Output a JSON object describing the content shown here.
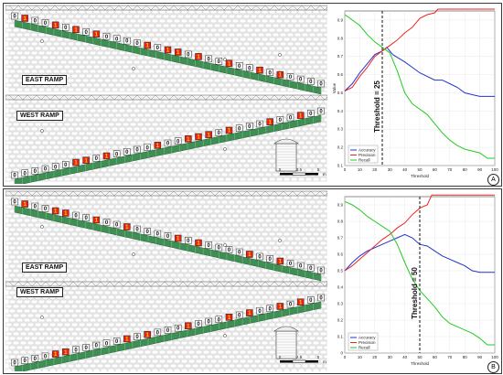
{
  "panels": [
    {
      "tag": "A",
      "ramps": [
        {
          "label": "EAST RAMP",
          "direction": "down",
          "labels": [
            "0",
            "1",
            "0",
            "0",
            "1",
            "0",
            "1",
            "0",
            "1",
            "0",
            "0",
            "0",
            "0",
            "1",
            "0",
            "1",
            "1",
            "0",
            "1",
            "0",
            "0",
            "1",
            "0",
            "0",
            "1",
            "0",
            "1",
            "0",
            "0",
            "0",
            "0"
          ]
        },
        {
          "label": "WEST RAMP",
          "direction": "up",
          "labels": [
            "0",
            "0",
            "0",
            "0",
            "0",
            "0",
            "1",
            "1",
            "0",
            "1",
            "0",
            "0",
            "0",
            "0",
            "1",
            "0",
            "0",
            "1",
            "1",
            "1",
            "0",
            "1",
            "0",
            "0",
            "0",
            "1",
            "0",
            "0",
            "1",
            "0",
            "0"
          ]
        }
      ],
      "scale": {
        "ticks": [
          "0",
          "2.5",
          "5"
        ],
        "unit": "m"
      },
      "chart_data": {
        "type": "line",
        "xlabel": "Threshold",
        "ylabel": "Value",
        "xlim": [
          0,
          100
        ],
        "ylim": [
          0.1,
          0.95
        ],
        "xticks": [
          "0",
          "10",
          "20",
          "30",
          "40",
          "50",
          "60",
          "70",
          "80",
          "90",
          "100"
        ],
        "yticks": [
          "0.1",
          "0.2",
          "0.3",
          "0.4",
          "0.5",
          "0.6",
          "0.7",
          "0.8",
          "0.9"
        ],
        "threshold": {
          "value": 25,
          "label": "Threshold = 25"
        },
        "legend_position": "bottom-left",
        "series": [
          {
            "name": "Accuracy",
            "color": "#2233cc",
            "x": [
              0,
              5,
              10,
              15,
              20,
              25,
              28,
              32,
              36,
              40,
              45,
              50,
              55,
              60,
              65,
              70,
              75,
              80,
              85,
              90,
              95,
              100
            ],
            "values": [
              0.51,
              0.55,
              0.61,
              0.66,
              0.71,
              0.73,
              0.75,
              0.71,
              0.69,
              0.67,
              0.64,
              0.61,
              0.59,
              0.57,
              0.57,
              0.55,
              0.53,
              0.5,
              0.49,
              0.48,
              0.48,
              0.48
            ]
          },
          {
            "name": "Precision",
            "color": "#ee2222",
            "x": [
              0,
              5,
              10,
              15,
              20,
              25,
              30,
              35,
              40,
              45,
              50,
              55,
              60,
              62,
              70,
              80,
              90,
              100
            ],
            "values": [
              0.51,
              0.53,
              0.59,
              0.64,
              0.7,
              0.73,
              0.76,
              0.79,
              0.83,
              0.86,
              0.91,
              0.93,
              0.94,
              0.96,
              0.96,
              0.96,
              0.96,
              0.96
            ]
          },
          {
            "name": "Recall",
            "color": "#22cc22",
            "x": [
              0,
              5,
              10,
              15,
              20,
              25,
              30,
              35,
              40,
              45,
              50,
              55,
              60,
              65,
              70,
              75,
              80,
              85,
              90,
              95,
              100
            ],
            "values": [
              0.93,
              0.9,
              0.87,
              0.82,
              0.78,
              0.75,
              0.72,
              0.62,
              0.5,
              0.44,
              0.41,
              0.38,
              0.33,
              0.28,
              0.24,
              0.21,
              0.19,
              0.18,
              0.17,
              0.14,
              0.14
            ]
          }
        ]
      }
    },
    {
      "tag": "B",
      "ramps": [
        {
          "label": "EAST RAMP",
          "direction": "down",
          "labels": [
            "0",
            "1",
            "0",
            "0",
            "1",
            "1",
            "0",
            "0",
            "1",
            "0",
            "0",
            "1",
            "0",
            "0",
            "0",
            "0",
            "1",
            "0",
            "1",
            "0",
            "0",
            "0",
            "0",
            "1",
            "0",
            "0",
            "1",
            "0",
            "0",
            "0",
            "0"
          ]
        },
        {
          "label": "WEST RAMP",
          "direction": "up",
          "labels": [
            "0",
            "0",
            "0",
            "0",
            "1",
            "1",
            "0",
            "0",
            "0",
            "0",
            "0",
            "1",
            "0",
            "1",
            "0",
            "0",
            "0",
            "1",
            "0",
            "0",
            "0",
            "1",
            "0",
            "1",
            "0",
            "0",
            "1",
            "0",
            "1",
            "0",
            "0"
          ]
        }
      ],
      "scale": {
        "ticks": [
          "0",
          "2.5",
          "5"
        ],
        "unit": "m"
      },
      "chart_data": {
        "type": "line",
        "xlabel": "Threshold",
        "ylabel": "",
        "xlim": [
          0,
          100
        ],
        "ylim": [
          0.0,
          0.95
        ],
        "xticks": [
          "0",
          "10",
          "20",
          "30",
          "40",
          "50",
          "60",
          "70",
          "80",
          "90",
          "100"
        ],
        "yticks": [
          "0",
          "0.1",
          "0.2",
          "0.3",
          "0.4",
          "0.5",
          "0.6",
          "0.7",
          "0.8",
          "0.9"
        ],
        "threshold": {
          "value": 50,
          "label": "Threshold = 50"
        },
        "legend_position": "bottom-left",
        "series": [
          {
            "name": "Accuracy",
            "color": "#2233cc",
            "x": [
              0,
              5,
              10,
              15,
              20,
              25,
              30,
              35,
              40,
              45,
              50,
              55,
              60,
              65,
              70,
              75,
              80,
              85,
              90,
              95,
              100
            ],
            "values": [
              0.5,
              0.55,
              0.59,
              0.62,
              0.64,
              0.66,
              0.68,
              0.7,
              0.72,
              0.7,
              0.66,
              0.65,
              0.62,
              0.59,
              0.57,
              0.55,
              0.53,
              0.5,
              0.49,
              0.49,
              0.49
            ]
          },
          {
            "name": "Precision",
            "color": "#ee2222",
            "x": [
              0,
              5,
              10,
              15,
              20,
              25,
              30,
              35,
              40,
              45,
              50,
              55,
              58,
              70,
              80,
              90,
              100
            ],
            "values": [
              0.5,
              0.53,
              0.57,
              0.61,
              0.65,
              0.69,
              0.72,
              0.76,
              0.79,
              0.84,
              0.88,
              0.9,
              0.96,
              0.96,
              0.96,
              0.96,
              0.96
            ]
          },
          {
            "name": "Recall",
            "color": "#22cc22",
            "x": [
              0,
              5,
              10,
              15,
              20,
              25,
              30,
              35,
              40,
              45,
              50,
              55,
              60,
              65,
              70,
              75,
              80,
              85,
              90,
              95,
              100
            ],
            "values": [
              0.92,
              0.9,
              0.87,
              0.83,
              0.8,
              0.77,
              0.74,
              0.66,
              0.55,
              0.45,
              0.38,
              0.33,
              0.28,
              0.22,
              0.18,
              0.16,
              0.14,
              0.12,
              0.09,
              0.05,
              0.05
            ]
          }
        ]
      }
    }
  ]
}
